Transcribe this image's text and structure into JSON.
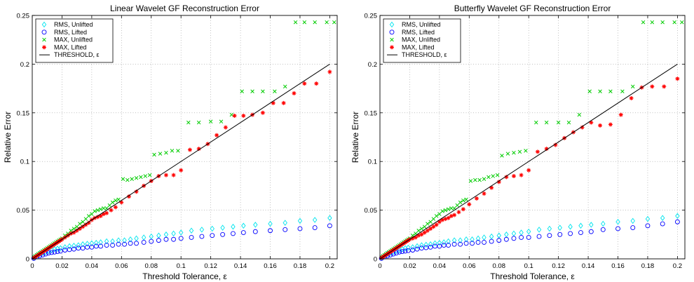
{
  "colors": {
    "rms_unlifted": "#00e5ee",
    "rms_lifted": "#0000ff",
    "max_unlifted": "#00cc00",
    "max_lifted": "#ff0000",
    "threshold": "#000000"
  },
  "chart_data": [
    {
      "type": "scatter",
      "title": "Linear Wavelet GF Reconstruction Error",
      "xlabel": "Threshold Tolerance, ε",
      "ylabel": "Relative Error",
      "xlim": [
        0,
        0.205
      ],
      "ylim": [
        0,
        0.25
      ],
      "xticks": [
        "0",
        "0.02",
        "0.04",
        "0.06",
        "0.08",
        "0.1",
        "0.12",
        "0.14",
        "0.16",
        "0.18",
        "0.2"
      ],
      "yticks": [
        "0",
        "0.05",
        "0.1",
        "0.15",
        "0.2",
        "0.25"
      ],
      "grid": true,
      "legend_position": "top-left",
      "series": [
        {
          "name": "RMS, Unlifted",
          "marker": "diamond",
          "x": [
            0.001,
            0.003,
            0.005,
            0.007,
            0.009,
            0.011,
            0.013,
            0.015,
            0.017,
            0.019,
            0.022,
            0.025,
            0.028,
            0.031,
            0.034,
            0.037,
            0.04,
            0.043,
            0.046,
            0.05,
            0.054,
            0.058,
            0.062,
            0.066,
            0.07,
            0.075,
            0.08,
            0.085,
            0.09,
            0.095,
            0.1,
            0.107,
            0.114,
            0.121,
            0.128,
            0.135,
            0.142,
            0.15,
            0.16,
            0.17,
            0.18,
            0.19,
            0.2
          ],
          "y": [
            0.001,
            0.003,
            0.005,
            0.006,
            0.007,
            0.008,
            0.009,
            0.01,
            0.0105,
            0.011,
            0.012,
            0.013,
            0.0135,
            0.014,
            0.015,
            0.0155,
            0.016,
            0.0165,
            0.017,
            0.018,
            0.018,
            0.019,
            0.019,
            0.02,
            0.021,
            0.022,
            0.023,
            0.024,
            0.025,
            0.026,
            0.027,
            0.029,
            0.03,
            0.031,
            0.032,
            0.033,
            0.034,
            0.035,
            0.036,
            0.037,
            0.039,
            0.04,
            0.042
          ]
        },
        {
          "name": "RMS, Lifted",
          "marker": "circle",
          "x": [
            0.001,
            0.003,
            0.005,
            0.007,
            0.009,
            0.011,
            0.013,
            0.015,
            0.017,
            0.019,
            0.022,
            0.025,
            0.028,
            0.031,
            0.034,
            0.037,
            0.04,
            0.043,
            0.046,
            0.05,
            0.054,
            0.058,
            0.062,
            0.066,
            0.07,
            0.075,
            0.08,
            0.085,
            0.09,
            0.095,
            0.1,
            0.107,
            0.114,
            0.121,
            0.128,
            0.135,
            0.142,
            0.15,
            0.16,
            0.17,
            0.18,
            0.19,
            0.2
          ],
          "y": [
            0.0005,
            0.002,
            0.003,
            0.004,
            0.005,
            0.006,
            0.0065,
            0.007,
            0.0075,
            0.008,
            0.009,
            0.0095,
            0.01,
            0.011,
            0.011,
            0.012,
            0.012,
            0.013,
            0.013,
            0.014,
            0.014,
            0.015,
            0.015,
            0.016,
            0.016,
            0.017,
            0.018,
            0.019,
            0.02,
            0.02,
            0.021,
            0.022,
            0.023,
            0.024,
            0.025,
            0.026,
            0.027,
            0.028,
            0.029,
            0.03,
            0.031,
            0.032,
            0.034
          ]
        },
        {
          "name": "MAX, Unlifted",
          "marker": "x",
          "x": [
            0.001,
            0.002,
            0.003,
            0.004,
            0.005,
            0.006,
            0.007,
            0.008,
            0.009,
            0.01,
            0.011,
            0.012,
            0.013,
            0.014,
            0.015,
            0.016,
            0.017,
            0.018,
            0.019,
            0.02,
            0.022,
            0.024,
            0.026,
            0.028,
            0.03,
            0.032,
            0.034,
            0.036,
            0.038,
            0.04,
            0.042,
            0.044,
            0.046,
            0.048,
            0.05,
            0.052,
            0.054,
            0.056,
            0.058,
            0.061,
            0.064,
            0.067,
            0.07,
            0.073,
            0.076,
            0.079,
            0.082,
            0.086,
            0.09,
            0.094,
            0.098,
            0.105,
            0.112,
            0.12,
            0.127,
            0.134,
            0.141,
            0.148,
            0.155,
            0.163,
            0.17,
            0.177,
            0.183,
            0.19,
            0.198,
            0.203
          ],
          "y": [
            0.002,
            0.003,
            0.004,
            0.005,
            0.006,
            0.007,
            0.008,
            0.009,
            0.01,
            0.011,
            0.012,
            0.013,
            0.014,
            0.015,
            0.016,
            0.017,
            0.018,
            0.019,
            0.02,
            0.021,
            0.024,
            0.026,
            0.029,
            0.031,
            0.033,
            0.036,
            0.038,
            0.041,
            0.044,
            0.046,
            0.049,
            0.05,
            0.051,
            0.052,
            0.052,
            0.055,
            0.058,
            0.06,
            0.061,
            0.082,
            0.081,
            0.082,
            0.083,
            0.084,
            0.085,
            0.086,
            0.107,
            0.108,
            0.109,
            0.111,
            0.111,
            0.14,
            0.14,
            0.141,
            0.141,
            0.148,
            0.172,
            0.172,
            0.172,
            0.172,
            0.177,
            0.243,
            0.243,
            0.243,
            0.243,
            0.243
          ]
        },
        {
          "name": "MAX, Lifted",
          "marker": "asterisk",
          "x": [
            0.001,
            0.002,
            0.003,
            0.004,
            0.005,
            0.006,
            0.007,
            0.008,
            0.009,
            0.01,
            0.011,
            0.012,
            0.013,
            0.014,
            0.015,
            0.016,
            0.017,
            0.018,
            0.019,
            0.02,
            0.022,
            0.024,
            0.026,
            0.028,
            0.03,
            0.032,
            0.034,
            0.036,
            0.038,
            0.04,
            0.042,
            0.044,
            0.046,
            0.048,
            0.05,
            0.053,
            0.056,
            0.06,
            0.065,
            0.07,
            0.075,
            0.08,
            0.085,
            0.09,
            0.095,
            0.1,
            0.106,
            0.112,
            0.118,
            0.124,
            0.13,
            0.136,
            0.142,
            0.148,
            0.155,
            0.162,
            0.169,
            0.176,
            0.183,
            0.191,
            0.2
          ],
          "y": [
            0.001,
            0.002,
            0.003,
            0.004,
            0.005,
            0.006,
            0.007,
            0.008,
            0.009,
            0.01,
            0.011,
            0.012,
            0.013,
            0.014,
            0.015,
            0.016,
            0.017,
            0.018,
            0.019,
            0.02,
            0.022,
            0.024,
            0.026,
            0.027,
            0.029,
            0.031,
            0.033,
            0.035,
            0.037,
            0.04,
            0.042,
            0.043,
            0.044,
            0.046,
            0.047,
            0.05,
            0.053,
            0.058,
            0.064,
            0.069,
            0.075,
            0.08,
            0.085,
            0.086,
            0.086,
            0.091,
            0.112,
            0.113,
            0.118,
            0.127,
            0.135,
            0.147,
            0.147,
            0.148,
            0.15,
            0.16,
            0.16,
            0.17,
            0.18,
            0.18,
            0.192
          ]
        },
        {
          "name": "THRESHOLD, ε",
          "marker": "line",
          "x": [
            0,
            0.2
          ],
          "y": [
            0,
            0.2
          ]
        }
      ]
    },
    {
      "type": "scatter",
      "title": "Butterfly Wavelet GF Reconstruction Error",
      "xlabel": "Threshold Tolerance, ε",
      "ylabel": "Relative Error",
      "xlim": [
        0,
        0.205
      ],
      "ylim": [
        0,
        0.25
      ],
      "xticks": [
        "0",
        "0.02",
        "0.04",
        "0.06",
        "0.08",
        "0.1",
        "0.12",
        "0.14",
        "0.16",
        "0.18",
        "0.2"
      ],
      "yticks": [
        "0",
        "0.05",
        "0.1",
        "0.15",
        "0.2",
        "0.25"
      ],
      "grid": true,
      "legend_position": "top-left",
      "series": [
        {
          "name": "RMS, Unlifted",
          "marker": "diamond",
          "x": [
            0.001,
            0.003,
            0.005,
            0.007,
            0.009,
            0.011,
            0.013,
            0.015,
            0.017,
            0.019,
            0.022,
            0.025,
            0.028,
            0.031,
            0.034,
            0.037,
            0.04,
            0.043,
            0.046,
            0.05,
            0.054,
            0.058,
            0.062,
            0.066,
            0.07,
            0.075,
            0.08,
            0.085,
            0.09,
            0.095,
            0.1,
            0.107,
            0.114,
            0.121,
            0.128,
            0.135,
            0.142,
            0.15,
            0.16,
            0.17,
            0.18,
            0.19,
            0.2
          ],
          "y": [
            0.001,
            0.003,
            0.005,
            0.006,
            0.007,
            0.008,
            0.009,
            0.01,
            0.011,
            0.0115,
            0.012,
            0.013,
            0.014,
            0.0145,
            0.015,
            0.016,
            0.0165,
            0.017,
            0.018,
            0.019,
            0.019,
            0.02,
            0.02,
            0.021,
            0.022,
            0.023,
            0.024,
            0.025,
            0.026,
            0.027,
            0.028,
            0.03,
            0.031,
            0.032,
            0.033,
            0.034,
            0.035,
            0.036,
            0.038,
            0.039,
            0.041,
            0.042,
            0.044
          ]
        },
        {
          "name": "RMS, Lifted",
          "marker": "circle",
          "x": [
            0.001,
            0.003,
            0.005,
            0.007,
            0.009,
            0.011,
            0.013,
            0.015,
            0.017,
            0.019,
            0.022,
            0.025,
            0.028,
            0.031,
            0.034,
            0.037,
            0.04,
            0.043,
            0.046,
            0.05,
            0.054,
            0.058,
            0.062,
            0.066,
            0.07,
            0.075,
            0.08,
            0.085,
            0.09,
            0.095,
            0.1,
            0.107,
            0.114,
            0.121,
            0.128,
            0.135,
            0.142,
            0.15,
            0.16,
            0.17,
            0.18,
            0.19,
            0.2
          ],
          "y": [
            0.0005,
            0.002,
            0.003,
            0.004,
            0.005,
            0.006,
            0.007,
            0.0075,
            0.008,
            0.0085,
            0.009,
            0.01,
            0.011,
            0.0115,
            0.012,
            0.013,
            0.013,
            0.014,
            0.014,
            0.015,
            0.015,
            0.016,
            0.016,
            0.017,
            0.017,
            0.018,
            0.019,
            0.02,
            0.021,
            0.022,
            0.022,
            0.023,
            0.024,
            0.025,
            0.026,
            0.027,
            0.028,
            0.03,
            0.031,
            0.032,
            0.034,
            0.036,
            0.038
          ]
        },
        {
          "name": "MAX, Unlifted",
          "marker": "x",
          "x": [
            0.001,
            0.002,
            0.003,
            0.004,
            0.005,
            0.006,
            0.007,
            0.008,
            0.009,
            0.01,
            0.011,
            0.012,
            0.013,
            0.014,
            0.015,
            0.016,
            0.017,
            0.018,
            0.019,
            0.02,
            0.022,
            0.024,
            0.026,
            0.028,
            0.03,
            0.032,
            0.034,
            0.036,
            0.038,
            0.04,
            0.042,
            0.044,
            0.046,
            0.048,
            0.05,
            0.052,
            0.054,
            0.056,
            0.058,
            0.061,
            0.064,
            0.067,
            0.07,
            0.073,
            0.076,
            0.079,
            0.082,
            0.086,
            0.09,
            0.094,
            0.098,
            0.105,
            0.112,
            0.12,
            0.127,
            0.134,
            0.141,
            0.148,
            0.155,
            0.163,
            0.17,
            0.177,
            0.183,
            0.19,
            0.198,
            0.203
          ],
          "y": [
            0.002,
            0.003,
            0.004,
            0.005,
            0.006,
            0.007,
            0.008,
            0.009,
            0.01,
            0.011,
            0.012,
            0.013,
            0.014,
            0.015,
            0.016,
            0.017,
            0.018,
            0.019,
            0.02,
            0.021,
            0.024,
            0.026,
            0.029,
            0.031,
            0.033,
            0.036,
            0.038,
            0.041,
            0.044,
            0.046,
            0.049,
            0.05,
            0.051,
            0.052,
            0.052,
            0.055,
            0.058,
            0.06,
            0.061,
            0.08,
            0.081,
            0.081,
            0.082,
            0.084,
            0.085,
            0.086,
            0.106,
            0.108,
            0.109,
            0.11,
            0.111,
            0.14,
            0.14,
            0.14,
            0.14,
            0.148,
            0.172,
            0.172,
            0.172,
            0.172,
            0.177,
            0.243,
            0.243,
            0.243,
            0.243,
            0.243
          ]
        },
        {
          "name": "MAX, Lifted",
          "marker": "asterisk",
          "x": [
            0.001,
            0.002,
            0.003,
            0.004,
            0.005,
            0.006,
            0.007,
            0.008,
            0.009,
            0.01,
            0.011,
            0.012,
            0.013,
            0.014,
            0.015,
            0.016,
            0.017,
            0.018,
            0.019,
            0.02,
            0.022,
            0.024,
            0.026,
            0.028,
            0.03,
            0.032,
            0.034,
            0.036,
            0.038,
            0.04,
            0.042,
            0.044,
            0.046,
            0.048,
            0.05,
            0.053,
            0.056,
            0.06,
            0.065,
            0.07,
            0.075,
            0.08,
            0.085,
            0.09,
            0.095,
            0.1,
            0.106,
            0.112,
            0.118,
            0.124,
            0.13,
            0.136,
            0.142,
            0.148,
            0.155,
            0.162,
            0.169,
            0.176,
            0.183,
            0.191,
            0.2
          ],
          "y": [
            0.001,
            0.002,
            0.003,
            0.004,
            0.005,
            0.006,
            0.007,
            0.008,
            0.009,
            0.01,
            0.011,
            0.012,
            0.013,
            0.014,
            0.015,
            0.016,
            0.017,
            0.018,
            0.019,
            0.02,
            0.021,
            0.022,
            0.024,
            0.025,
            0.027,
            0.029,
            0.031,
            0.033,
            0.035,
            0.038,
            0.04,
            0.041,
            0.042,
            0.044,
            0.045,
            0.048,
            0.051,
            0.056,
            0.062,
            0.067,
            0.073,
            0.079,
            0.084,
            0.085,
            0.086,
            0.091,
            0.11,
            0.113,
            0.117,
            0.124,
            0.13,
            0.135,
            0.14,
            0.137,
            0.138,
            0.148,
            0.165,
            0.176,
            0.177,
            0.177,
            0.185
          ]
        },
        {
          "name": "THRESHOLD, ε",
          "marker": "line",
          "x": [
            0,
            0.2
          ],
          "y": [
            0,
            0.2
          ]
        }
      ]
    }
  ]
}
